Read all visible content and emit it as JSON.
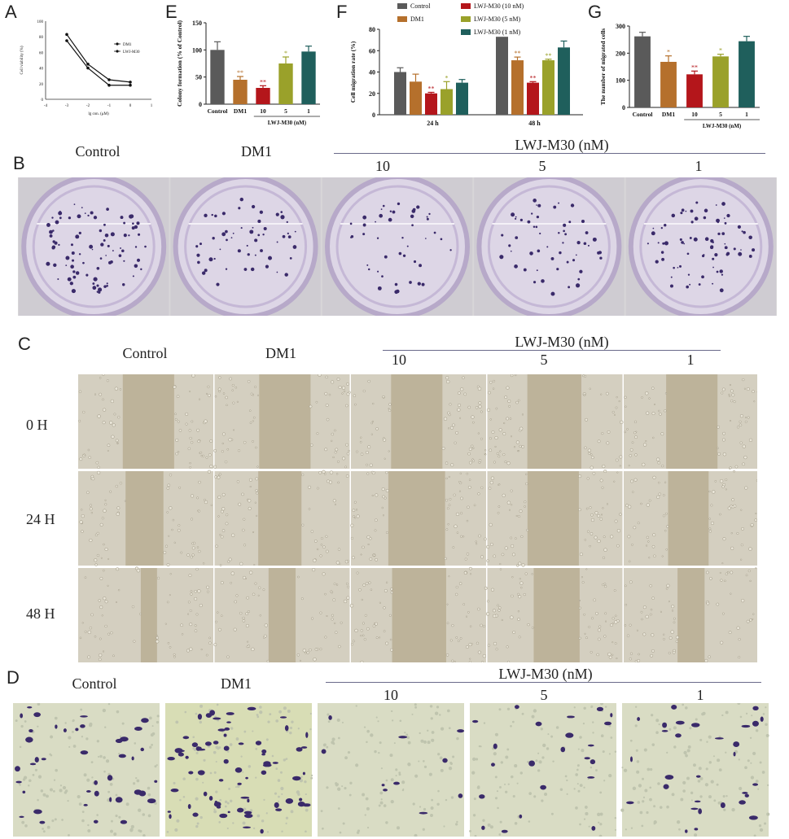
{
  "panel_labels": {
    "a": "A",
    "b": "B",
    "c": "C",
    "d": "D",
    "e": "E",
    "f": "F",
    "g": "G"
  },
  "conditions": {
    "control": "Control",
    "dm1": "DM1",
    "group": "LWJ-M30 (nM)",
    "c10": "10",
    "c5": "5",
    "c1": "1"
  },
  "time_labels": [
    "0 H",
    "24 H",
    "48 H"
  ],
  "colors": {
    "control": "#5a5a5a",
    "dm1": "#b5702c",
    "lwj10": "#b4161b",
    "lwj5": "#9aa12a",
    "lwj1": "#1f5f5c",
    "stain": "#3a2a6a",
    "plate": "#ddd6e6",
    "migration_bg": "#ece6d3"
  },
  "chart_data": [
    {
      "id": "A",
      "type": "line",
      "xlabel": "lg con. (μM)",
      "ylabel": "Cell viability (%)",
      "xlim": [
        -4,
        1
      ],
      "ylim": [
        0,
        100
      ],
      "x_ticks": [
        "-4",
        "-3",
        "-2",
        "-1",
        "0",
        "1"
      ],
      "y_ticks": [
        "0",
        "20",
        "40",
        "60",
        "80",
        "100"
      ],
      "series": [
        {
          "name": "DM1",
          "x": [
            -3,
            -2,
            -1,
            0
          ],
          "y": [
            83,
            45,
            25,
            22
          ]
        },
        {
          "name": "LWJ-M30",
          "x": [
            -3,
            -2,
            -1,
            0
          ],
          "y": [
            75,
            40,
            18,
            18
          ]
        }
      ]
    },
    {
      "id": "E",
      "type": "bar",
      "ylabel": "Colony formation (% of Control)",
      "ylim": [
        0,
        150
      ],
      "y_ticks": [
        "0",
        "50",
        "100",
        "150"
      ],
      "categories": [
        "Control",
        "DM1",
        "10",
        "5",
        "1"
      ],
      "values": [
        100,
        45,
        30,
        75,
        97
      ],
      "errors": [
        15,
        6,
        4,
        12,
        10
      ],
      "significance": [
        "",
        "**",
        "**",
        "*",
        ""
      ],
      "group_label": "LWJ-M30 (nM)"
    },
    {
      "id": "F",
      "type": "bar",
      "ylabel": "Cell migration rate (%)",
      "ylim": [
        0,
        80
      ],
      "y_ticks": [
        "0",
        "20",
        "40",
        "60",
        "80"
      ],
      "categories": [
        "24 h",
        "48 h"
      ],
      "series": [
        {
          "name": "Control",
          "values": [
            40,
            73
          ],
          "errors": [
            4,
            0
          ],
          "significance": [
            "",
            ""
          ]
        },
        {
          "name": "DM1",
          "values": [
            31,
            51
          ],
          "errors": [
            7,
            3
          ],
          "significance": [
            "",
            "**"
          ]
        },
        {
          "name": "LWJ-M30 (10 nM)",
          "values": [
            20,
            30
          ],
          "errors": [
            1,
            1
          ],
          "significance": [
            "**",
            "**"
          ]
        },
        {
          "name": "LWJ-M30 (5 nM)",
          "values": [
            24,
            51
          ],
          "errors": [
            7,
            1
          ],
          "significance": [
            "*",
            "**"
          ]
        },
        {
          "name": "LWJ-M30 (1 nM)",
          "values": [
            30,
            63
          ],
          "errors": [
            3,
            6
          ],
          "significance": [
            "",
            ""
          ]
        }
      ]
    },
    {
      "id": "G",
      "type": "bar",
      "ylabel": "The number of migrated cells",
      "ylim": [
        0,
        300
      ],
      "y_ticks": [
        "0",
        "100",
        "200",
        "300"
      ],
      "categories": [
        "Control",
        "DM1",
        "10",
        "5",
        "1"
      ],
      "values": [
        262,
        168,
        122,
        188,
        244
      ],
      "errors": [
        15,
        22,
        12,
        8,
        18
      ],
      "significance": [
        "",
        "*",
        "**",
        "*",
        ""
      ],
      "group_label": "LWJ-M30 (nM)"
    }
  ]
}
